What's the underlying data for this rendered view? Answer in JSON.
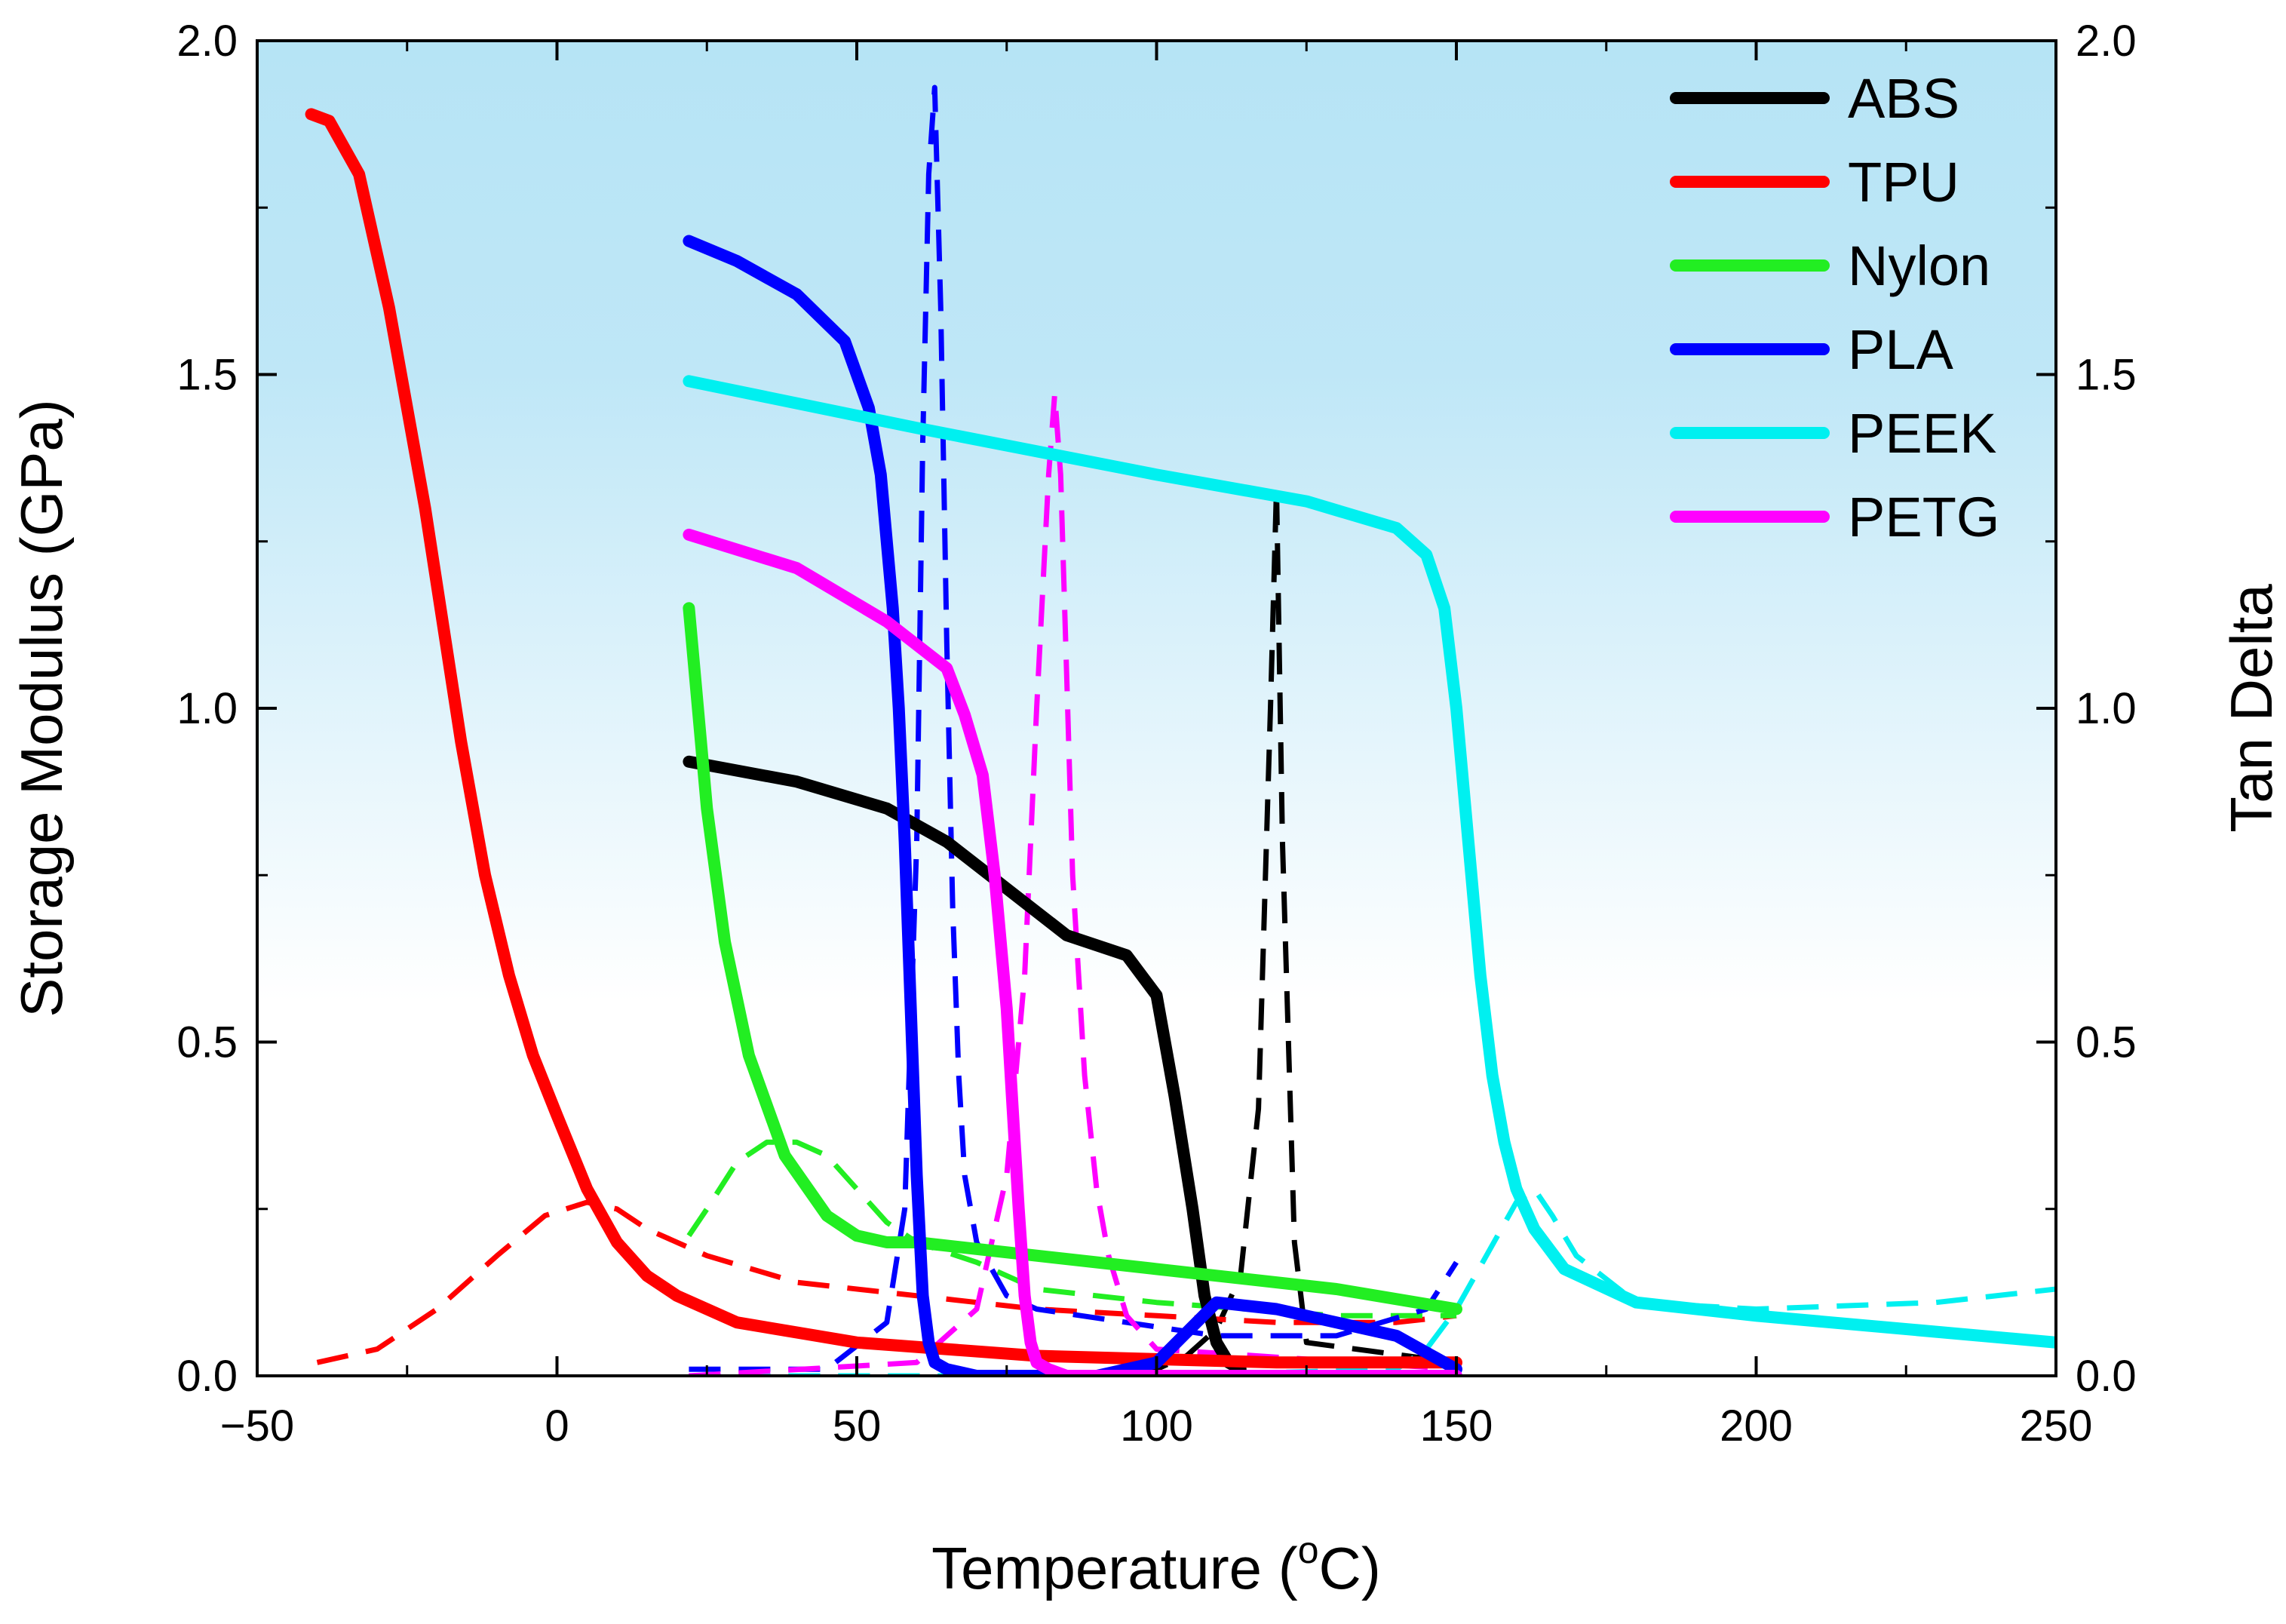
{
  "chart_data": {
    "type": "line",
    "title": "",
    "xlabel": "Temperature (",
    "xlabel_sup": "o",
    "xlabel_unit": "C)",
    "ylabel_left": "Storage Modulus (GPa)",
    "ylabel_right": "Tan Delta",
    "xlim": [
      -50,
      250
    ],
    "ylim_left": [
      0,
      2.0
    ],
    "ylim_right": [
      0,
      2.0
    ],
    "x_ticks": [
      -50,
      0,
      50,
      100,
      150,
      200,
      250
    ],
    "x_tick_labels": [
      "−50",
      "0",
      "50",
      "100",
      "150",
      "200",
      "250"
    ],
    "y_ticks": [
      0,
      0.5,
      1.0,
      1.5,
      2.0
    ],
    "y_tick_labels": [
      "0.0",
      "0.5",
      "1.0",
      "1.5",
      "2.0"
    ],
    "background_gradient": [
      "#b6e4f5",
      "#ffffff"
    ],
    "legend_position": "top-right",
    "series": [
      {
        "name": "ABS",
        "color": "#000000",
        "storage_modulus": {
          "x": [
            22,
            40,
            55,
            65,
            75,
            85,
            95,
            100,
            103,
            106,
            108,
            110,
            112,
            114
          ],
          "y": [
            0.92,
            0.89,
            0.85,
            0.8,
            0.73,
            0.66,
            0.63,
            0.57,
            0.42,
            0.25,
            0.12,
            0.05,
            0.02,
            0.01
          ]
        },
        "tan_delta": {
          "x": [
            22,
            60,
            90,
            100,
            105,
            110,
            114,
            117,
            119,
            120,
            121,
            123,
            125,
            150
          ],
          "y": [
            0.0,
            0.0,
            0.0,
            0.01,
            0.03,
            0.07,
            0.15,
            0.4,
            1.0,
            1.33,
            0.8,
            0.2,
            0.05,
            0.02
          ]
        }
      },
      {
        "name": "TPU",
        "color": "#ff0000",
        "storage_modulus": {
          "x": [
            -41,
            -38,
            -33,
            -28,
            -22,
            -16,
            -12,
            -8,
            -4,
            0,
            5,
            10,
            15,
            20,
            30,
            50,
            80,
            120,
            150
          ],
          "y": [
            1.89,
            1.88,
            1.8,
            1.6,
            1.3,
            0.95,
            0.75,
            0.6,
            0.48,
            0.39,
            0.28,
            0.2,
            0.15,
            0.12,
            0.08,
            0.05,
            0.03,
            0.02,
            0.02
          ]
        },
        "tan_delta": {
          "x": [
            -40,
            -30,
            -20,
            -10,
            -2,
            5,
            10,
            15,
            25,
            40,
            60,
            80,
            100,
            120,
            140,
            150
          ],
          "y": [
            0.02,
            0.04,
            0.1,
            0.18,
            0.24,
            0.26,
            0.25,
            0.22,
            0.18,
            0.14,
            0.12,
            0.1,
            0.09,
            0.08,
            0.08,
            0.09
          ]
        }
      },
      {
        "name": "Nylon",
        "color": "#22ee22",
        "storage_modulus": {
          "x": [
            22,
            23,
            25,
            28,
            32,
            38,
            45,
            50,
            55,
            60,
            80,
            100,
            130,
            150
          ],
          "y": [
            1.15,
            1.05,
            0.85,
            0.65,
            0.48,
            0.33,
            0.24,
            0.21,
            0.2,
            0.2,
            0.18,
            0.16,
            0.13,
            0.1
          ]
        },
        "tan_delta": {
          "x": [
            22,
            25,
            30,
            35,
            40,
            45,
            50,
            55,
            60,
            70,
            80,
            100,
            130,
            150
          ],
          "y": [
            0.21,
            0.25,
            0.32,
            0.35,
            0.35,
            0.33,
            0.28,
            0.23,
            0.2,
            0.17,
            0.13,
            0.11,
            0.09,
            0.09
          ]
        }
      },
      {
        "name": "PLA",
        "color": "#0000ff",
        "storage_modulus": {
          "x": [
            22,
            30,
            40,
            48,
            52,
            54,
            56,
            57,
            58,
            59,
            60,
            61,
            62,
            63,
            65,
            70,
            90,
            100,
            110,
            120,
            140,
            150
          ],
          "y": [
            1.7,
            1.67,
            1.62,
            1.55,
            1.45,
            1.35,
            1.15,
            1.0,
            0.8,
            0.55,
            0.3,
            0.12,
            0.05,
            0.02,
            0.01,
            0.0,
            0.0,
            0.02,
            0.11,
            0.1,
            0.06,
            0.01
          ]
        },
        "tan_delta": {
          "x": [
            22,
            45,
            55,
            58,
            60,
            61,
            62,
            63,
            64,
            65,
            66,
            67,
            68,
            70,
            75,
            80,
            95,
            110,
            130,
            145,
            150
          ],
          "y": [
            0.01,
            0.01,
            0.08,
            0.25,
            0.8,
            1.4,
            1.8,
            1.93,
            1.6,
            1.1,
            0.7,
            0.45,
            0.3,
            0.2,
            0.12,
            0.1,
            0.08,
            0.06,
            0.06,
            0.1,
            0.17
          ]
        }
      },
      {
        "name": "PEEK",
        "color": "#00f0f0",
        "storage_modulus": {
          "x": [
            22,
            60,
            100,
            125,
            140,
            145,
            148,
            150,
            152,
            154,
            156,
            158,
            160,
            163,
            168,
            180,
            200,
            250
          ],
          "y": [
            1.49,
            1.42,
            1.35,
            1.31,
            1.27,
            1.23,
            1.15,
            1.0,
            0.8,
            0.6,
            0.45,
            0.35,
            0.28,
            0.22,
            0.16,
            0.11,
            0.09,
            0.05
          ]
        },
        "tan_delta": {
          "x": [
            22,
            100,
            140,
            145,
            150,
            155,
            160,
            163,
            166,
            170,
            180,
            200,
            230,
            250
          ],
          "y": [
            0.0,
            0.0,
            0.01,
            0.04,
            0.1,
            0.18,
            0.26,
            0.28,
            0.24,
            0.18,
            0.11,
            0.1,
            0.11,
            0.13
          ]
        }
      },
      {
        "name": "PETG",
        "color": "#ff00ff",
        "storage_modulus": {
          "x": [
            22,
            40,
            55,
            65,
            68,
            71,
            73,
            75,
            76,
            77,
            78,
            79,
            80,
            82,
            85,
            150
          ],
          "y": [
            1.26,
            1.21,
            1.13,
            1.06,
            0.99,
            0.9,
            0.75,
            0.55,
            0.4,
            0.25,
            0.12,
            0.05,
            0.02,
            0.01,
            0.0,
            0.0
          ]
        },
        "tan_delta": {
          "x": [
            22,
            60,
            70,
            75,
            78,
            80,
            82,
            83,
            84,
            85,
            86,
            88,
            90,
            92,
            95,
            100,
            150
          ],
          "y": [
            0.0,
            0.02,
            0.1,
            0.3,
            0.6,
            1.0,
            1.35,
            1.47,
            1.35,
            1.05,
            0.75,
            0.45,
            0.28,
            0.18,
            0.09,
            0.04,
            0.01
          ]
        }
      }
    ]
  }
}
